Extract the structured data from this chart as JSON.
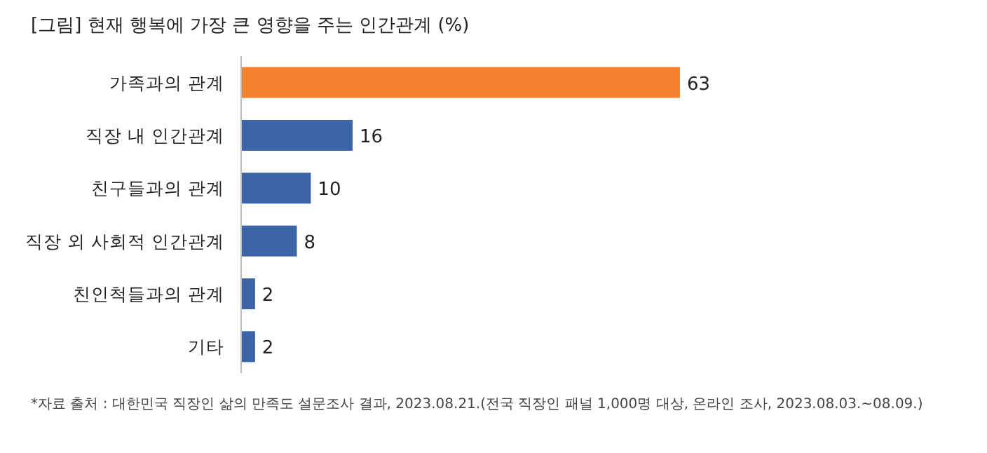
{
  "chart_data": {
    "type": "bar",
    "orientation": "horizontal",
    "title": "[그림] 현재 행복에 가장 큰 영향을 주는 인간관계 (%)",
    "categories": [
      "가족과의 관계",
      "직장 내 인간관계",
      "친구들과의 관계",
      "직장 외 사회적 인간관계",
      "친인척들과의 관계",
      "기타"
    ],
    "values": [
      63,
      16,
      10,
      8,
      2,
      2
    ],
    "colors": [
      "#f5822f",
      "#3b64a9",
      "#3b64a9",
      "#3b64a9",
      "#3b64a9",
      "#3b64a9"
    ],
    "data_labels": true,
    "annotations": [
      "*자료 출처 : 대한민국 직장인 삶의 만족도 설문조사 결과, 2023.08.21.(전국 직장인 패널 1,000명 대상, 온라인 조사, 2023.08.03.~08.09.)"
    ]
  }
}
